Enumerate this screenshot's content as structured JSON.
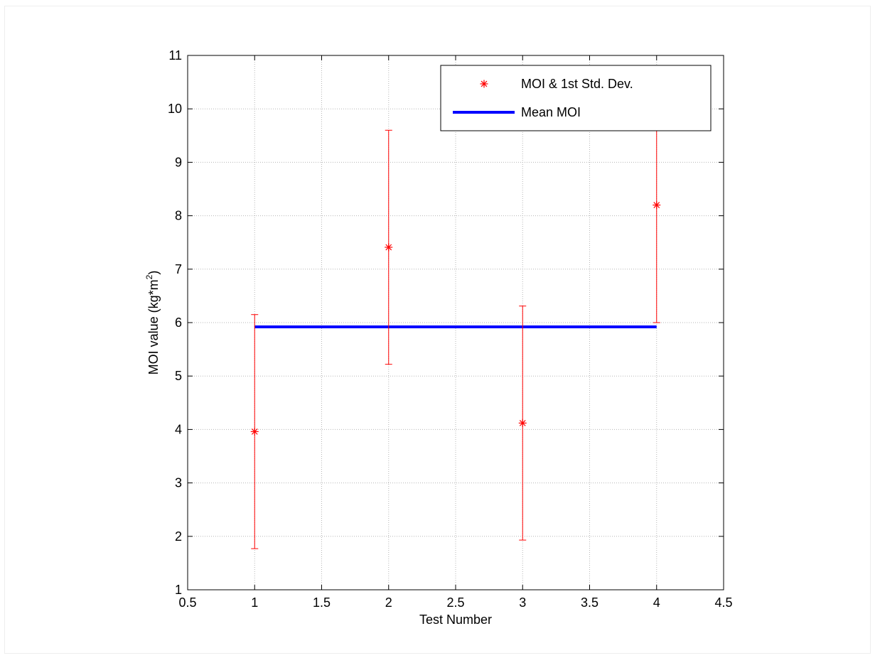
{
  "chart_data": {
    "type": "scatter",
    "title": "",
    "xlabel": "Test Number",
    "ylabel": "MOI value (kg*m",
    "ylabel_sup": "2",
    "ylabel_close": ")",
    "xlim": [
      0.5,
      4.5
    ],
    "ylim": [
      1,
      11
    ],
    "xticks": [
      "0.5",
      "1",
      "1.5",
      "2",
      "2.5",
      "3",
      "3.5",
      "4",
      "4.5"
    ],
    "yticks": [
      "1",
      "2",
      "3",
      "4",
      "5",
      "6",
      "7",
      "8",
      "9",
      "10",
      "11"
    ],
    "grid": true,
    "legend_position": "top-right",
    "series": [
      {
        "name": "MOI & 1st Std. Dev.",
        "kind": "errorbar",
        "marker": "asterisk",
        "color": "#ff0000",
        "x": [
          1,
          2,
          3,
          4
        ],
        "y": [
          3.96,
          7.41,
          4.12,
          8.2
        ],
        "lower": [
          1.77,
          5.22,
          1.93,
          6.0
        ],
        "upper": [
          6.15,
          9.6,
          6.31,
          10.4
        ]
      },
      {
        "name": "Mean MOI",
        "kind": "line",
        "color": "#0000ff",
        "x": [
          1,
          4
        ],
        "y": [
          5.92,
          5.92
        ]
      }
    ]
  }
}
